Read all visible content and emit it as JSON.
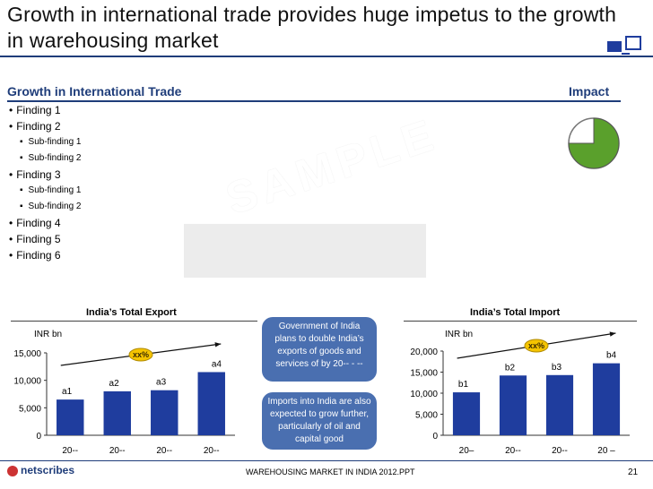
{
  "slide": {
    "title": "Growth in international trade provides huge impetus to the growth in warehousing market",
    "section_label": "Growth in International Trade",
    "impact_label": "Impact",
    "watermark": "SAMPLE"
  },
  "findings": [
    {
      "text": "Finding 1",
      "subs": []
    },
    {
      "text": "Finding 2",
      "subs": [
        "Sub-finding 1",
        "Sub-finding 2"
      ]
    },
    {
      "text": "Finding 3",
      "subs": [
        "Sub-finding 1",
        "Sub-finding 2"
      ]
    },
    {
      "text": "Finding 4",
      "subs": []
    },
    {
      "text": "Finding 5",
      "subs": []
    },
    {
      "text": "Finding 6",
      "subs": []
    }
  ],
  "callouts": {
    "top": "Government of India plans to double India’s exports of goods and services of by 20-- - --",
    "bottom": "Imports into India are also expected to grow further, particularly of oil and capital good"
  },
  "footer": {
    "logo": "netscribes",
    "center": "WAREHOUSING MARKET IN INDIA 2012.PPT",
    "page": "21"
  },
  "colors": {
    "accent": "#1f3d7a",
    "bar": "#1f3d9e",
    "badge": "#f5c400",
    "impact_fill": "#5aa02c"
  },
  "impact_fraction": 0.75,
  "chart_data": [
    {
      "type": "bar",
      "title": "India’s Total Export",
      "ylabel": "INR bn",
      "categories": [
        "20--",
        "20--",
        "20--",
        "20--"
      ],
      "values": [
        6500,
        8000,
        8200,
        11500
      ],
      "data_labels": [
        "a1",
        "a2",
        "a3",
        "a4"
      ],
      "yticks": [
        "15,000",
        "10,000",
        "5,000",
        "0"
      ],
      "ylim": [
        0,
        15000
      ],
      "badge": "xx%"
    },
    {
      "type": "bar",
      "title": "India’s Total Import",
      "ylabel": "INR bn",
      "categories": [
        "20–",
        "20--",
        "20--",
        "20 –"
      ],
      "values": [
        10200,
        14200,
        14300,
        17100
      ],
      "data_labels": [
        "b1",
        "b2",
        "b3",
        "b4"
      ],
      "yticks": [
        "20,000",
        "15,000",
        "10,000",
        "5,000",
        "0"
      ],
      "ylim": [
        0,
        20000
      ],
      "badge": "xx%"
    }
  ]
}
